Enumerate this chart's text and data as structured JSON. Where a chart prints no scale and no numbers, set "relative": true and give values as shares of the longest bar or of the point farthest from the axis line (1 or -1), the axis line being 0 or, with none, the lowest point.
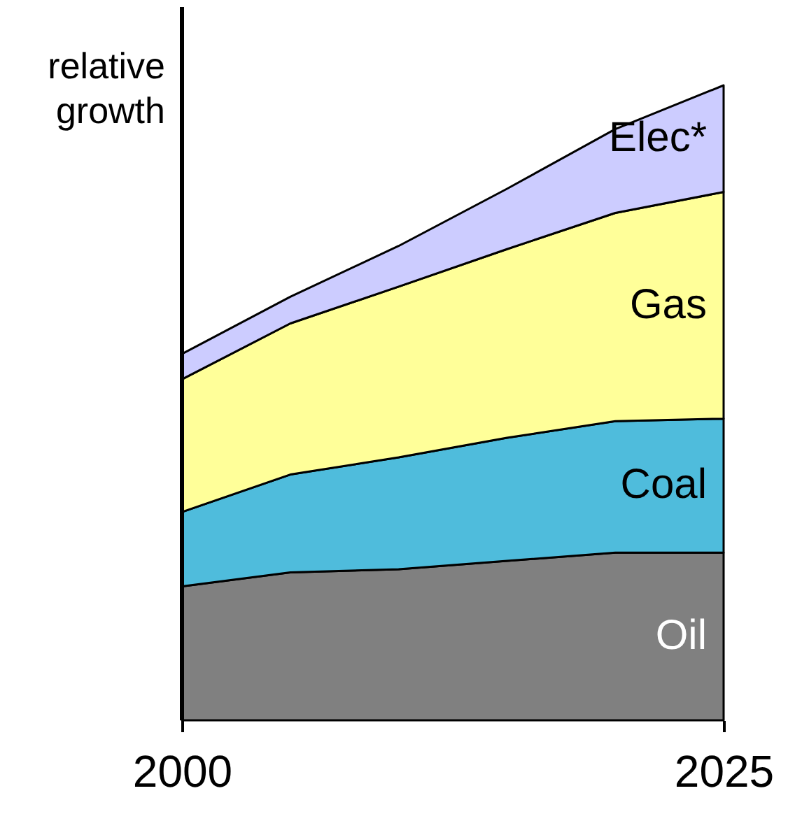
{
  "chart_data": {
    "type": "area",
    "stacked": true,
    "relative": true,
    "ylabel": "relative growth",
    "x": [
      2000,
      2005,
      2010,
      2015,
      2020,
      2025
    ],
    "xlim": [
      2000,
      2025
    ],
    "xticks": [
      2000,
      2025
    ],
    "series": [
      {
        "name": "Oil",
        "color": "#808080",
        "values": [
          0.211,
          0.233,
          0.238,
          0.251,
          0.264,
          0.264
        ]
      },
      {
        "name": "Coal",
        "color": "#4fbcdc",
        "values": [
          0.117,
          0.154,
          0.176,
          0.194,
          0.207,
          0.211
        ]
      },
      {
        "name": "Gas",
        "color": "#ffff99",
        "values": [
          0.209,
          0.238,
          0.269,
          0.297,
          0.328,
          0.357
        ]
      },
      {
        "name": "Elec*",
        "color": "#ccccff",
        "values": [
          0.04,
          0.042,
          0.064,
          0.095,
          0.132,
          0.168
        ]
      }
    ]
  }
}
